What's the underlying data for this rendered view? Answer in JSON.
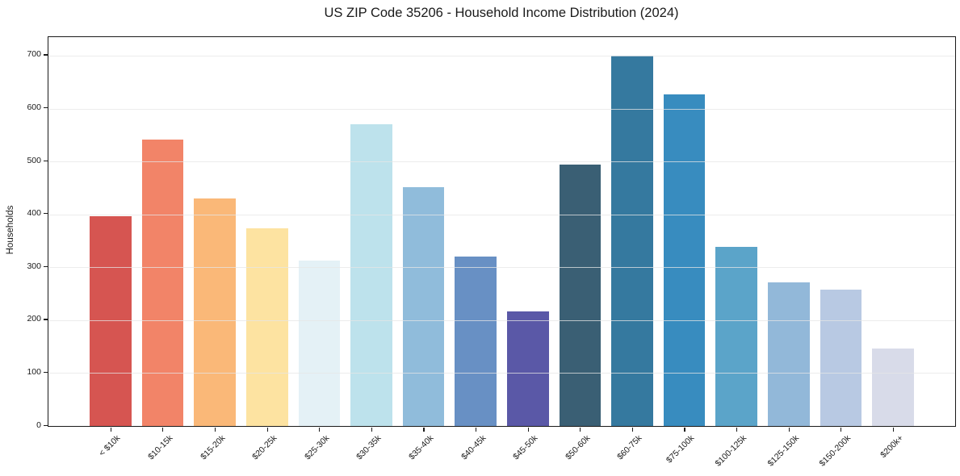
{
  "chart_data": {
    "type": "bar",
    "title": "US ZIP Code 35206 - Household Income Distribution (2024)",
    "ylabel": "Households",
    "xlabel": "",
    "categories": [
      "< $10k",
      "$10-15k",
      "$15-20k",
      "$20-25k",
      "$25-30k",
      "$30-35k",
      "$35-40k",
      "$40-45k",
      "$45-50k",
      "$50-60k",
      "$60-75k",
      "$75-100k",
      "$100-125k",
      "$125-150k",
      "$150-200k",
      "$200k+"
    ],
    "values": [
      397,
      541,
      430,
      374,
      313,
      570,
      451,
      320,
      217,
      494,
      700,
      626,
      339,
      271,
      258,
      146
    ],
    "bar_colors": [
      "#d65551",
      "#f28468",
      "#fab878",
      "#fde3a1",
      "#e4f1f6",
      "#bde2ec",
      "#90bcdb",
      "#6890c4",
      "#5a58a7",
      "#3a5f74",
      "#35799f",
      "#388cbf",
      "#5ba4c9",
      "#92b8d9",
      "#b8c9e3",
      "#d8dbe9"
    ],
    "ylim": [
      0,
      735
    ],
    "yticks": [
      0,
      100,
      200,
      300,
      400,
      500,
      600,
      700
    ],
    "grid": "horizontal-only",
    "legend": "none",
    "x_tick_rotation": 45,
    "bar_width_fraction": 0.8
  }
}
